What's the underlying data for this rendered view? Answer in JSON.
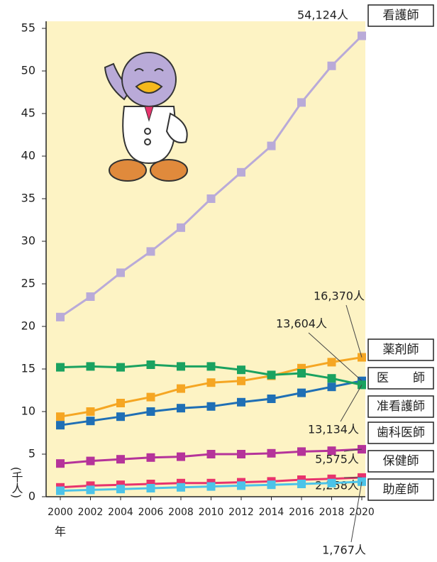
{
  "chart_data": {
    "type": "line",
    "x": [
      2000,
      2002,
      2004,
      2006,
      2008,
      2010,
      2012,
      2014,
      2016,
      2018,
      2020
    ],
    "xlim": [
      2000,
      2020
    ],
    "xticks": [
      2000,
      2002,
      2004,
      2006,
      2008,
      2010,
      2012,
      2014,
      2016,
      2018,
      2020
    ],
    "x_label": "年",
    "y_label": "(千人)",
    "ylim": [
      0,
      55
    ],
    "yticks": [
      0,
      5,
      10,
      15,
      20,
      25,
      30,
      35,
      40,
      45,
      50,
      55
    ],
    "series": [
      {
        "name": "看護師",
        "color": "#b9aad8",
        "values": [
          21.1,
          23.5,
          26.3,
          28.8,
          31.6,
          35.0,
          38.1,
          41.2,
          46.3,
          50.6,
          54.124
        ],
        "value_labels": [
          null,
          null,
          null,
          null,
          null,
          null,
          null,
          null,
          null,
          null,
          "54,124人"
        ]
      },
      {
        "name": "薬剤師",
        "color": "#f5a623",
        "values": [
          9.4,
          10.0,
          11.0,
          11.7,
          12.7,
          13.4,
          13.6,
          14.2,
          15.1,
          15.8,
          16.37
        ],
        "value_labels": [
          null,
          null,
          null,
          null,
          null,
          null,
          null,
          null,
          null,
          null,
          "16,370人"
        ]
      },
      {
        "name": "医　　師",
        "color": "#1f6fb5",
        "values": [
          8.4,
          8.9,
          9.4,
          10.0,
          10.4,
          10.6,
          11.1,
          11.5,
          12.2,
          12.9,
          13.604
        ],
        "value_labels": [
          null,
          null,
          null,
          null,
          null,
          null,
          null,
          null,
          null,
          null,
          "13,604人"
        ]
      },
      {
        "name": "准看護師",
        "color": "#1aa260",
        "values": [
          15.2,
          15.3,
          15.2,
          15.5,
          15.3,
          15.3,
          14.9,
          14.3,
          14.5,
          13.9,
          13.134
        ],
        "value_labels": [
          null,
          null,
          null,
          null,
          null,
          null,
          null,
          null,
          null,
          null,
          "13,134人"
        ]
      },
      {
        "name": "歯科医師",
        "color": "#b5339a",
        "values": [
          3.9,
          4.2,
          4.4,
          4.6,
          4.7,
          5.0,
          5.0,
          5.1,
          5.3,
          5.4,
          5.575
        ],
        "value_labels": [
          null,
          null,
          null,
          null,
          null,
          null,
          null,
          null,
          null,
          null,
          "5,575人"
        ]
      },
      {
        "name": "保健師",
        "color": "#e8336d",
        "values": [
          1.1,
          1.3,
          1.4,
          1.5,
          1.6,
          1.6,
          1.7,
          1.8,
          2.0,
          2.1,
          2.258
        ],
        "value_labels": [
          null,
          null,
          null,
          null,
          null,
          null,
          null,
          null,
          null,
          null,
          "2,258人"
        ]
      },
      {
        "name": "助産師",
        "color": "#4cc3e8",
        "values": [
          0.7,
          0.8,
          0.9,
          1.0,
          1.1,
          1.2,
          1.3,
          1.4,
          1.5,
          1.6,
          1.767
        ],
        "value_labels": [
          null,
          null,
          null,
          null,
          null,
          null,
          null,
          null,
          null,
          null,
          "1,767人"
        ]
      }
    ]
  }
}
